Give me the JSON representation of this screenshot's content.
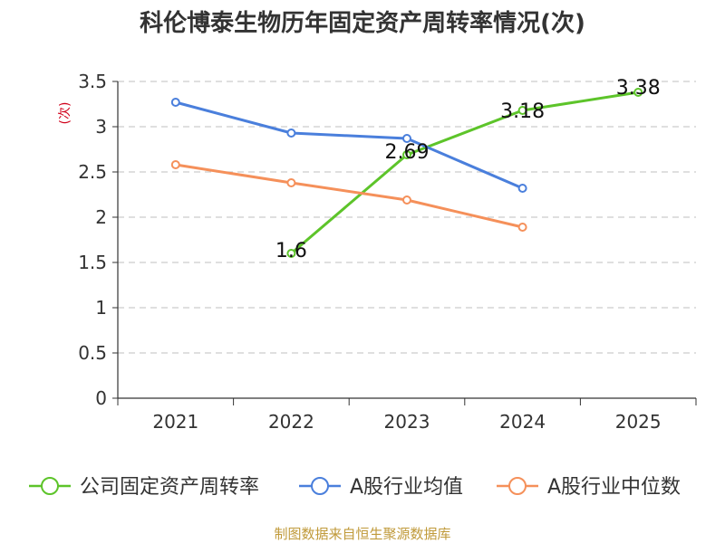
{
  "chart_data": {
    "type": "line",
    "title": "科伦博泰生物历年固定资产周转率情况(次)",
    "ylabel": "(次)",
    "xlabel": "",
    "categories": [
      "2021",
      "2022",
      "2023",
      "2024",
      "2025"
    ],
    "ylim": [
      0,
      3.5
    ],
    "yticks": [
      0,
      0.5,
      1,
      1.5,
      2,
      2.5,
      3,
      3.5
    ],
    "ytick_labels": [
      "0",
      "0.5",
      "1",
      "1.5",
      "2",
      "2.5",
      "3",
      "3.5"
    ],
    "grid": true,
    "legend_position": "bottom",
    "series": [
      {
        "name": "公司固定资产周转率",
        "color": "#5dc42a",
        "values": [
          null,
          1.6,
          2.69,
          3.18,
          3.38
        ],
        "labels": [
          null,
          "1.6",
          "2.69",
          "3.18",
          "3.38"
        ]
      },
      {
        "name": "A股行业均值",
        "color": "#4a7fdc",
        "values": [
          3.27,
          2.93,
          2.87,
          2.32,
          null
        ],
        "labels": [
          null,
          null,
          null,
          null,
          null
        ]
      },
      {
        "name": "A股行业中位数",
        "color": "#f5905a",
        "values": [
          2.58,
          2.38,
          2.19,
          1.89,
          null
        ],
        "labels": [
          null,
          null,
          null,
          null,
          null
        ]
      }
    ]
  },
  "footer": {
    "source": "制图数据来自恒生聚源数据库"
  }
}
